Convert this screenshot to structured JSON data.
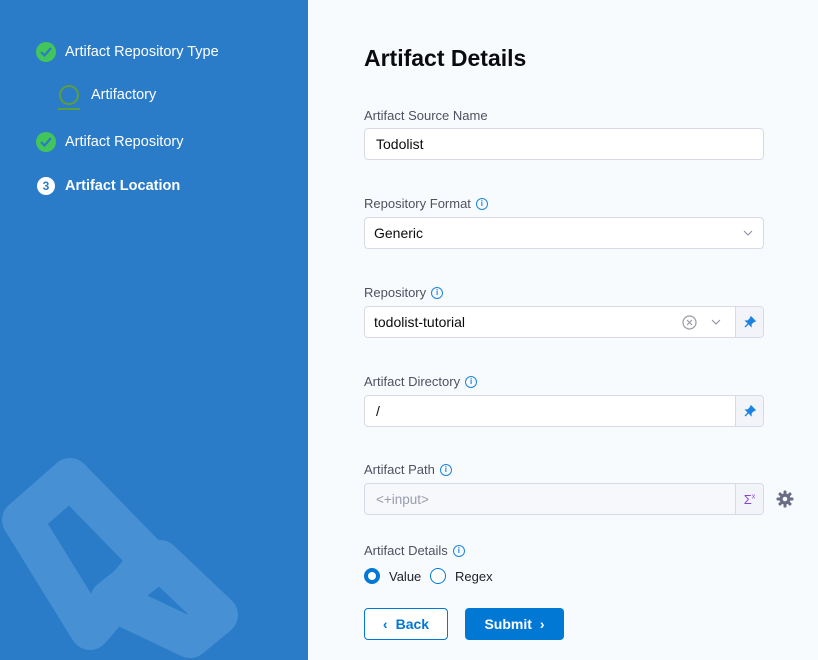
{
  "wizard": {
    "steps": [
      {
        "label": "Artifact Repository Type",
        "status": "complete"
      },
      {
        "label": "Artifactory",
        "status": "sub"
      },
      {
        "label": "Artifact Repository",
        "status": "complete"
      },
      {
        "label": "Artifact Location",
        "status": "current",
        "number": "3"
      }
    ]
  },
  "form": {
    "title": "Artifact Details",
    "source_name": {
      "label": "Artifact Source Name",
      "value": "Todolist"
    },
    "repo_format": {
      "label": "Repository Format",
      "value": "Generic"
    },
    "repository": {
      "label": "Repository",
      "value": "todolist-tutorial"
    },
    "directory": {
      "label": "Artifact Directory",
      "value": "/"
    },
    "path": {
      "label": "Artifact Path",
      "placeholder": "<+input>"
    },
    "details": {
      "label": "Artifact Details",
      "options": [
        "Value",
        "Regex"
      ],
      "selected": "Value"
    },
    "back_label": "Back",
    "submit_label": "Submit"
  },
  "colors": {
    "sidebar": "#2a7cc9",
    "accent": "#0278d5",
    "success": "#42c55a"
  }
}
